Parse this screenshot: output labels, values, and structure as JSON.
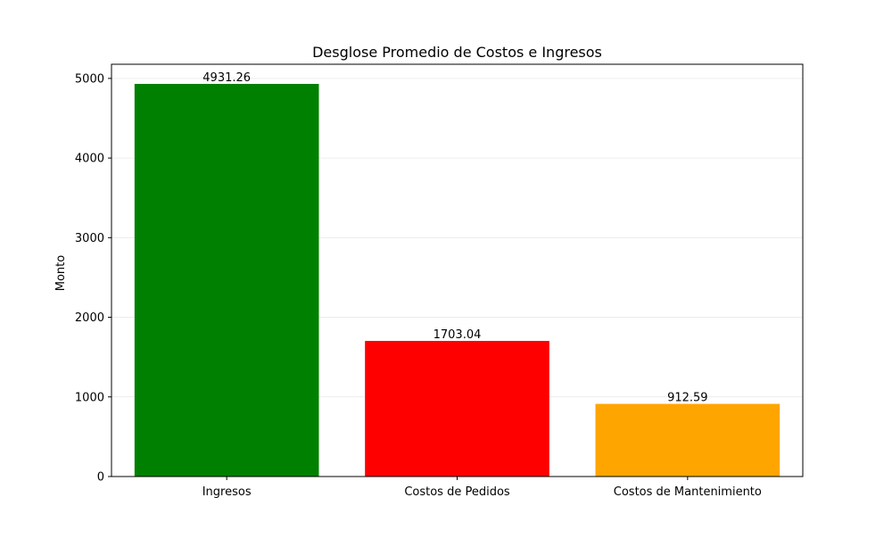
{
  "chart_data": {
    "type": "bar",
    "title": "Desglose Promedio de Costos e Ingresos",
    "xlabel": "",
    "ylabel": "Monto",
    "categories": [
      "Ingresos",
      "Costos de Pedidos",
      "Costos de Mantenimiento"
    ],
    "values": [
      4931.26,
      1703.04,
      912.59
    ],
    "value_labels": [
      "4931.26",
      "1703.04",
      "912.59"
    ],
    "colors": [
      "#008000",
      "#ff0000",
      "#ffa500"
    ],
    "ylim": [
      0,
      5177.82
    ],
    "yticks": [
      0,
      1000,
      2000,
      3000,
      4000,
      5000
    ],
    "ytick_labels": [
      "0",
      "1000",
      "2000",
      "3000",
      "4000",
      "5000"
    ],
    "grid": {
      "y": true,
      "x": false,
      "color": "#e8e8e8"
    },
    "legend": "none"
  }
}
